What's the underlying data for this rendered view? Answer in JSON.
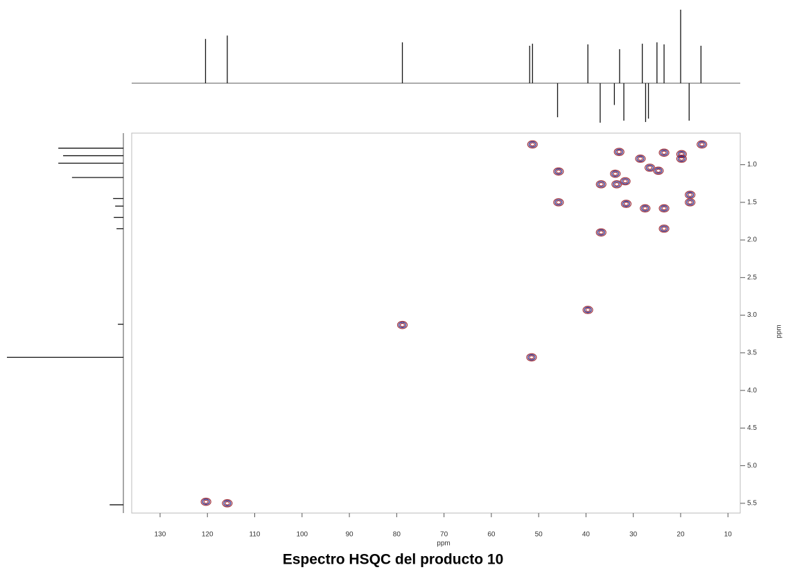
{
  "chart_data": {
    "type": "scatter",
    "title": "Espectro HSQC del producto 10",
    "xlabel": "ppm",
    "ylabel": "ppm",
    "xlim": [
      136,
      7.4
    ],
    "ylim": [
      0.58,
      5.63
    ],
    "xticks": [
      130,
      120,
      110,
      100,
      90,
      80,
      70,
      60,
      50,
      40,
      30,
      20,
      10
    ],
    "yticks": [
      1.0,
      1.5,
      2.0,
      2.5,
      3.0,
      3.5,
      4.0,
      4.5,
      5.0,
      5.5
    ],
    "colors": [
      "#2b2f8f",
      "#a0303a"
    ],
    "x": [
      51.3,
      33.0,
      23.5,
      19.8,
      28.5,
      19.8,
      15.5,
      26.5,
      24.7,
      45.8,
      33.8,
      31.7,
      36.8,
      33.5,
      45.8,
      31.5,
      27.5,
      23.5,
      18.0,
      18.0,
      23.5,
      36.8,
      39.6,
      78.8,
      51.5,
      120.3,
      115.8
    ],
    "values": [
      0.73,
      0.83,
      0.84,
      0.86,
      0.92,
      0.92,
      0.73,
      1.04,
      1.08,
      1.09,
      1.12,
      1.22,
      1.26,
      1.26,
      1.5,
      1.52,
      1.58,
      1.58,
      1.4,
      1.5,
      1.85,
      1.9,
      2.93,
      3.13,
      3.56,
      5.48,
      5.5
    ],
    "top_projection": {
      "x": [
        120.4,
        115.8,
        78.8,
        51.9,
        51.3,
        46.0,
        39.6,
        37.0,
        34.0,
        32.9,
        32.0,
        28.1,
        27.4,
        26.8,
        25.0,
        23.5,
        20.0,
        18.2,
        15.7
      ],
      "heights": [
        65,
        70,
        60,
        55,
        58,
        -50,
        57,
        -58,
        -32,
        50,
        -55,
        58,
        -57,
        -52,
        60,
        57,
        108,
        -55,
        55
      ],
      "hlim": [
        -60,
        110
      ]
    },
    "left_projection": {
      "ppm": [
        0.78,
        0.88,
        0.98,
        1.17,
        1.45,
        1.55,
        1.7,
        1.85,
        3.12,
        3.56,
        5.52
      ],
      "heights": [
        95,
        88,
        95,
        75,
        15,
        12,
        14,
        10,
        8,
        170,
        20
      ],
      "hlim": [
        0,
        170
      ]
    }
  }
}
